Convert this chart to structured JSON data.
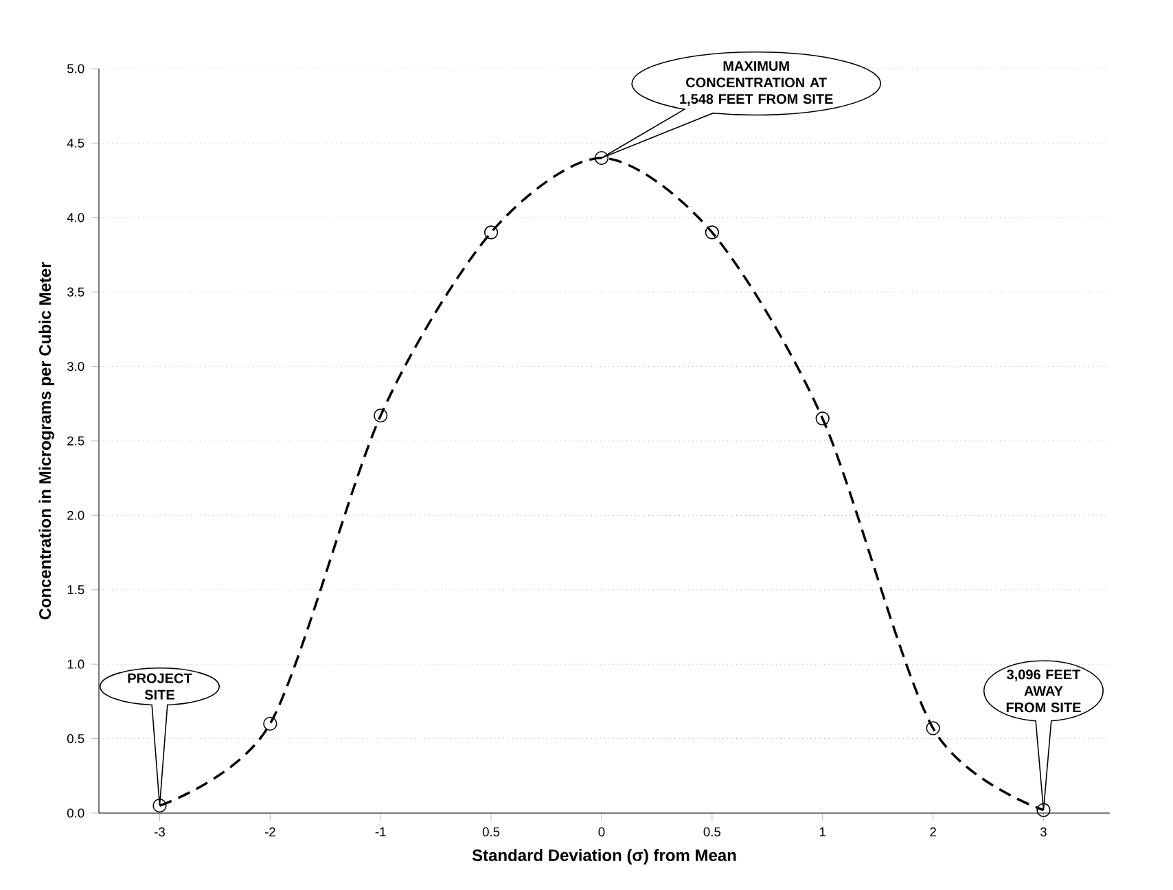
{
  "chart_data": {
    "type": "line",
    "xlabel": "Standard Deviation (σ) from Mean",
    "ylabel": "Concentration in Micrograms per Cubic Meter",
    "categories": [
      "-3",
      "-2",
      "-1",
      "0.5",
      "0",
      "0.5",
      "1",
      "2",
      "3"
    ],
    "values": [
      0.05,
      0.6,
      2.67,
      3.9,
      4.4,
      3.9,
      2.65,
      0.57,
      0.02
    ],
    "color": "#000000",
    "marker": "circle",
    "line_style": "dashed",
    "grid": "y",
    "ylim": [
      0,
      5
    ],
    "yticks": [
      {
        "value": 0,
        "label": "0.0"
      },
      0.5,
      {
        "value": 1,
        "label": "1.0"
      },
      1.5,
      {
        "value": 2,
        "label": "2.0"
      },
      2.5,
      {
        "value": 3,
        "label": "3.0"
      },
      3.5,
      {
        "value": 4,
        "label": "4.0"
      },
      4.5,
      {
        "value": 5,
        "label": "5.0"
      }
    ],
    "annotations": [
      "PROJECT SITE",
      "MAXIMUM CONCENTRATION AT 1,548 FEET FROM SITE",
      "3,096 FEET AWAY FROM SITE"
    ]
  }
}
